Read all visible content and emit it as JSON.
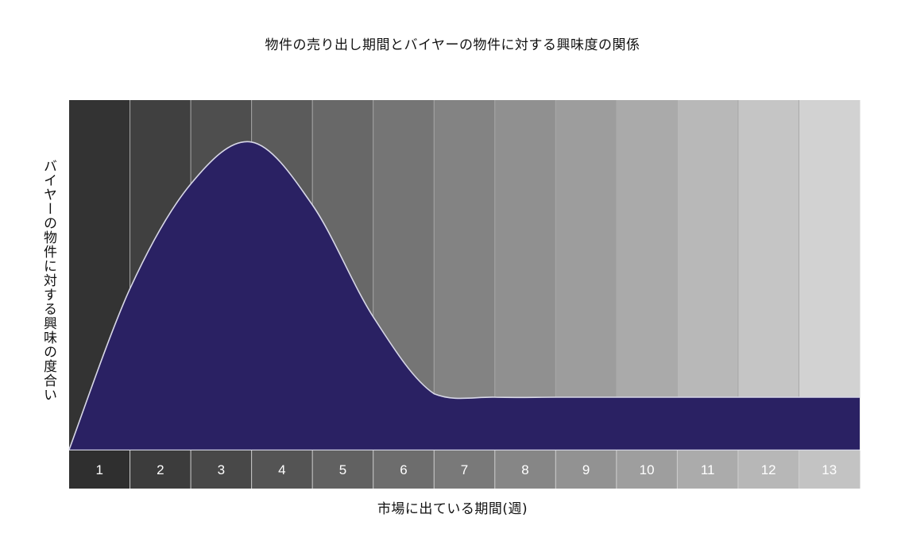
{
  "chart_data": {
    "type": "area",
    "title": "物件の売り出し期間とバイヤーの物件に対する興味度の関係",
    "xlabel": "市場に出ている期間(週)",
    "ylabel": "バイヤーの物件に対する興味の度合い",
    "categories": [
      "1",
      "2",
      "3",
      "4",
      "5",
      "6",
      "7",
      "8",
      "9",
      "10",
      "11",
      "12",
      "13"
    ],
    "x": [
      0,
      1,
      2,
      3,
      4,
      5,
      6,
      7,
      8,
      9,
      10,
      11,
      12,
      13
    ],
    "values": [
      0,
      46,
      76,
      88,
      70,
      38,
      16,
      15,
      15,
      15,
      15,
      15,
      15,
      15
    ],
    "peak": {
      "x": 3.0,
      "value": 88
    },
    "y_range": [
      0,
      100
    ],
    "x_range": [
      0,
      13
    ],
    "grid": true,
    "colors": {
      "fill": "#2a2163",
      "outline": "#d8d8e8",
      "band_dark": "#333333",
      "band_light": "#d2d2d2"
    }
  }
}
